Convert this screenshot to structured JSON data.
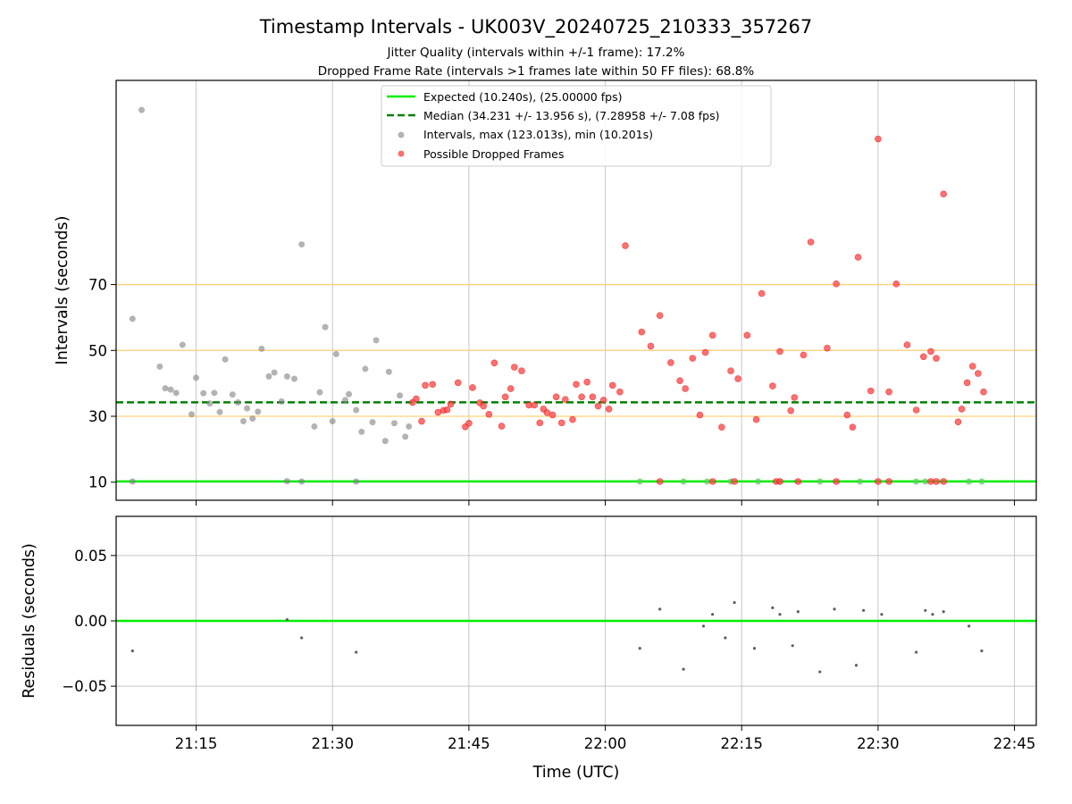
{
  "chart_data": {
    "type": "scatter",
    "title": "Timestamp Intervals - UK003V_20240725_210333_357267",
    "subtitle_lines": [
      "Jitter Quality (intervals within +/-1 frame): 17.2%",
      "Dropped Frame Rate (intervals >1 frames late within 50 FF files): 68.8%"
    ],
    "xlabel": "Time (UTC)",
    "x_ticks": [
      "21:15",
      "21:30",
      "21:45",
      "22:00",
      "22:15",
      "22:30",
      "22:45"
    ],
    "xlim": [
      "21:06:12",
      "22:47:24"
    ],
    "top": {
      "ylabel": "Intervals (seconds)",
      "ylim": [
        4.5,
        132
      ],
      "y_ticks": [
        10,
        30,
        50,
        70
      ],
      "reference_lines": [
        30,
        50,
        70
      ],
      "reference_line_color": "#ffd27a",
      "grid": true,
      "legend_position": "upper center",
      "expected": {
        "label": "Expected (10.240s), (25.00000 fps)",
        "value": 10.24,
        "color": "#00ee00"
      },
      "median": {
        "label": "Median (34.231 +/- 13.956 s), (7.28958 +/- 7.08 fps)",
        "value": 34.231,
        "color": "#008000"
      },
      "intervals": {
        "label": "Intervals, max (123.013s), min (10.201s)",
        "color": "#808080",
        "points": [
          [
            "21:09:00",
            123.0
          ],
          [
            "21:08:00",
            59.6
          ],
          [
            "21:08:00",
            10.2
          ],
          [
            "21:11:00",
            45.1
          ],
          [
            "21:11:36",
            38.5
          ],
          [
            "21:12:12",
            38.1
          ],
          [
            "21:12:48",
            37.1
          ],
          [
            "21:13:30",
            51.7
          ],
          [
            "21:14:30",
            30.6
          ],
          [
            "21:15:00",
            41.7
          ],
          [
            "21:15:48",
            37.0
          ],
          [
            "21:16:30",
            33.9
          ],
          [
            "21:17:00",
            37.1
          ],
          [
            "21:17:36",
            31.3
          ],
          [
            "21:18:12",
            47.3
          ],
          [
            "21:19:00",
            36.6
          ],
          [
            "21:19:36",
            34.2
          ],
          [
            "21:20:12",
            28.5
          ],
          [
            "21:20:36",
            32.4
          ],
          [
            "21:21:12",
            29.3
          ],
          [
            "21:21:48",
            31.4
          ],
          [
            "21:22:12",
            50.5
          ],
          [
            "21:23:00",
            42.1
          ],
          [
            "21:23:36",
            43.3
          ],
          [
            "21:24:24",
            34.5
          ],
          [
            "21:25:00",
            42.1
          ],
          [
            "21:25:00",
            10.3
          ],
          [
            "21:25:48",
            41.4
          ],
          [
            "21:26:36",
            82.2
          ],
          [
            "21:26:36",
            10.2
          ],
          [
            "21:28:00",
            26.9
          ],
          [
            "21:28:36",
            37.3
          ],
          [
            "21:29:12",
            57.1
          ],
          [
            "21:30:00",
            28.5
          ],
          [
            "21:30:24",
            48.9
          ],
          [
            "21:31:24",
            34.9
          ],
          [
            "21:31:48",
            36.7
          ],
          [
            "21:32:36",
            31.9
          ],
          [
            "21:32:36",
            10.2
          ],
          [
            "21:33:12",
            25.3
          ],
          [
            "21:33:36",
            44.4
          ],
          [
            "21:34:24",
            28.2
          ],
          [
            "21:34:48",
            53.1
          ],
          [
            "21:35:48",
            22.5
          ],
          [
            "21:36:12",
            43.5
          ],
          [
            "21:36:48",
            27.9
          ],
          [
            "21:37:24",
            36.3
          ],
          [
            "21:38:00",
            23.8
          ],
          [
            "21:38:24",
            26.9
          ]
        ]
      },
      "dropped": {
        "label": "Possible Dropped Frames",
        "color": "#ff4040",
        "points": [
          [
            "21:38:48",
            34.2
          ],
          [
            "21:39:12",
            35.3
          ],
          [
            "21:39:48",
            28.5
          ],
          [
            "21:40:12",
            39.4
          ],
          [
            "21:41:00",
            39.7
          ],
          [
            "21:41:36",
            31.2
          ],
          [
            "21:42:12",
            31.8
          ],
          [
            "21:42:36",
            32.0
          ],
          [
            "21:43:00",
            33.7
          ],
          [
            "21:43:48",
            40.2
          ],
          [
            "21:44:36",
            26.8
          ],
          [
            "21:45:00",
            27.9
          ],
          [
            "21:45:24",
            38.7
          ],
          [
            "21:46:12",
            34.1
          ],
          [
            "21:46:36",
            33.1
          ],
          [
            "21:47:12",
            30.6
          ],
          [
            "21:47:48",
            46.2
          ],
          [
            "21:48:36",
            27.0
          ],
          [
            "21:49:00",
            35.9
          ],
          [
            "21:49:36",
            38.4
          ],
          [
            "21:50:00",
            44.9
          ],
          [
            "21:50:48",
            43.8
          ],
          [
            "21:51:36",
            33.4
          ],
          [
            "21:52:12",
            33.4
          ],
          [
            "21:52:48",
            28.0
          ],
          [
            "21:53:12",
            32.2
          ],
          [
            "21:53:36",
            31.1
          ],
          [
            "21:54:12",
            30.4
          ],
          [
            "21:54:36",
            35.9
          ],
          [
            "21:55:12",
            28.0
          ],
          [
            "21:55:36",
            35.1
          ],
          [
            "21:56:24",
            29.0
          ],
          [
            "21:56:48",
            39.7
          ],
          [
            "21:57:24",
            35.9
          ],
          [
            "21:58:00",
            40.4
          ],
          [
            "21:58:36",
            35.9
          ],
          [
            "21:59:12",
            33.1
          ],
          [
            "21:59:48",
            34.9
          ],
          [
            "22:00:24",
            32.2
          ],
          [
            "22:00:48",
            39.4
          ],
          [
            "22:01:36",
            37.4
          ],
          [
            "22:02:12",
            81.8
          ],
          [
            "22:04:00",
            55.6
          ],
          [
            "22:05:00",
            51.3
          ],
          [
            "22:06:00",
            60.6
          ],
          [
            "22:06:00",
            10.2
          ],
          [
            "22:07:12",
            46.3
          ],
          [
            "22:08:12",
            40.8
          ],
          [
            "22:08:48",
            38.4
          ],
          [
            "22:09:36",
            47.6
          ],
          [
            "22:10:24",
            30.4
          ],
          [
            "22:11:00",
            49.4
          ],
          [
            "22:11:48",
            54.6
          ],
          [
            "22:11:48",
            10.2
          ],
          [
            "22:12:48",
            26.7
          ],
          [
            "22:13:48",
            43.8
          ],
          [
            "22:14:36",
            41.4
          ],
          [
            "22:14:12",
            10.2
          ],
          [
            "22:15:36",
            54.6
          ],
          [
            "22:16:36",
            29.0
          ],
          [
            "22:17:12",
            67.3
          ],
          [
            "22:18:24",
            39.2
          ],
          [
            "22:18:48",
            10.2
          ],
          [
            "22:19:12",
            49.7
          ],
          [
            "22:19:12",
            10.2
          ],
          [
            "22:20:24",
            31.7
          ],
          [
            "22:20:48",
            35.7
          ],
          [
            "22:21:48",
            48.6
          ],
          [
            "22:21:12",
            10.2
          ],
          [
            "22:22:36",
            82.9
          ],
          [
            "22:24:24",
            50.7
          ],
          [
            "22:25:24",
            70.2
          ],
          [
            "22:25:24",
            10.2
          ],
          [
            "22:26:36",
            30.4
          ],
          [
            "22:27:12",
            26.7
          ],
          [
            "22:27:48",
            78.3
          ],
          [
            "22:29:12",
            37.7
          ],
          [
            "22:30:00",
            114.2
          ],
          [
            "22:30:00",
            10.2
          ],
          [
            "22:31:12",
            37.4
          ],
          [
            "22:31:12",
            10.2
          ],
          [
            "22:32:00",
            70.2
          ],
          [
            "22:33:12",
            51.7
          ],
          [
            "22:34:12",
            31.9
          ],
          [
            "22:35:00",
            48.1
          ],
          [
            "22:35:48",
            49.7
          ],
          [
            "22:35:48",
            10.2
          ],
          [
            "22:36:24",
            47.6
          ],
          [
            "22:36:24",
            10.2
          ],
          [
            "22:37:12",
            97.5
          ],
          [
            "22:37:12",
            10.2
          ],
          [
            "22:38:48",
            28.3
          ],
          [
            "22:39:12",
            32.2
          ],
          [
            "22:39:48",
            40.2
          ],
          [
            "22:40:24",
            45.2
          ],
          [
            "22:41:00",
            43.0
          ],
          [
            "22:41:36",
            37.4
          ]
        ]
      },
      "near_expected_points": [
        "22:03:48",
        "22:08:36",
        "22:11:12",
        "22:13:48",
        "22:16:48",
        "22:19:12",
        "22:23:36",
        "22:28:00",
        "22:34:12",
        "22:35:12",
        "22:40:00",
        "22:41:24"
      ]
    },
    "bottom": {
      "ylabel": "Residuals (seconds)",
      "ylim": [
        -0.08,
        0.08
      ],
      "y_ticks": [
        "0.05",
        "0.00",
        "−0.05"
      ],
      "y_tick_values": [
        0.05,
        0.0,
        -0.05
      ],
      "zero_line_color": "#00ee00",
      "point_color": "#606060",
      "points": [
        [
          "21:08:00",
          -0.023
        ],
        [
          "21:25:00",
          0.001
        ],
        [
          "21:26:36",
          -0.013
        ],
        [
          "21:32:36",
          -0.024
        ],
        [
          "22:03:48",
          -0.021
        ],
        [
          "22:06:00",
          0.009
        ],
        [
          "22:08:36",
          -0.037
        ],
        [
          "22:10:48",
          -0.004
        ],
        [
          "22:11:48",
          0.005
        ],
        [
          "22:13:12",
          -0.013
        ],
        [
          "22:14:12",
          0.014
        ],
        [
          "22:16:24",
          -0.021
        ],
        [
          "22:18:24",
          0.01
        ],
        [
          "22:19:12",
          0.005
        ],
        [
          "22:20:36",
          -0.019
        ],
        [
          "22:21:12",
          0.007
        ],
        [
          "22:23:36",
          -0.039
        ],
        [
          "22:25:12",
          0.009
        ],
        [
          "22:27:36",
          -0.034
        ],
        [
          "22:28:24",
          0.008
        ],
        [
          "22:30:24",
          0.005
        ],
        [
          "22:34:12",
          -0.024
        ],
        [
          "22:35:12",
          0.008
        ],
        [
          "22:36:00",
          0.005
        ],
        [
          "22:37:12",
          0.007
        ],
        [
          "22:40:00",
          -0.004
        ],
        [
          "22:41:24",
          -0.023
        ]
      ]
    }
  }
}
